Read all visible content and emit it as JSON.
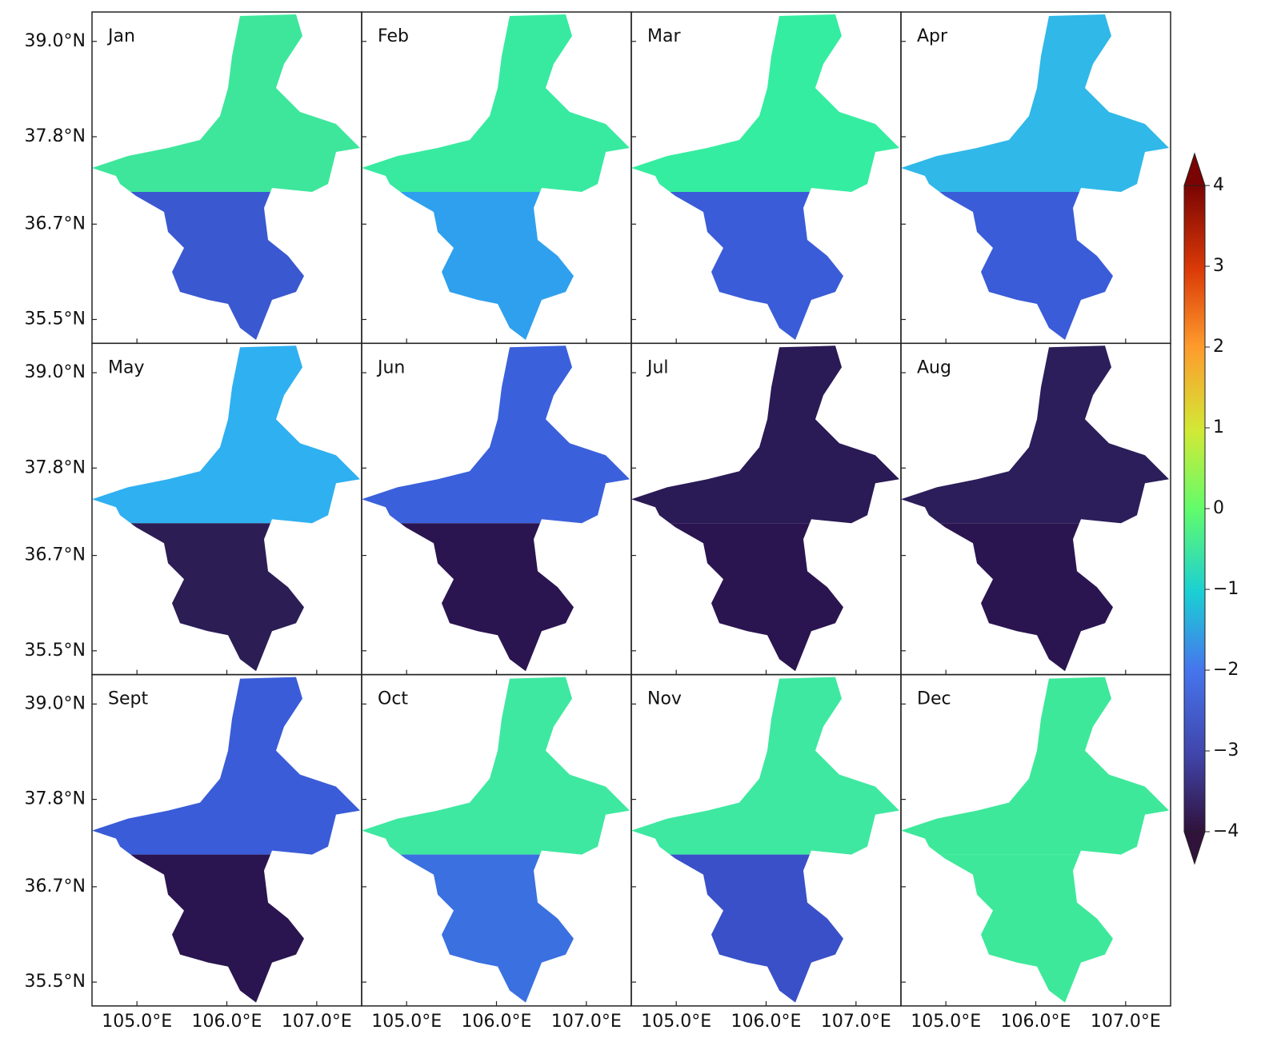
{
  "panels": [
    {
      "label": "Jan",
      "colors": [
        "#3ee69c",
        "#3a58d0"
      ]
    },
    {
      "label": "Feb",
      "colors": [
        "#38eaa0",
        "#2fa0ee"
      ]
    },
    {
      "label": "Mar",
      "colors": [
        "#35eda0",
        "#3a5cd8"
      ]
    },
    {
      "label": "Apr",
      "colors": [
        "#30b8e8",
        "#3a5cd8"
      ]
    },
    {
      "label": "May",
      "colors": [
        "#2fb0f0",
        "#2c1d55"
      ]
    },
    {
      "label": "Jun",
      "colors": [
        "#3a60dc",
        "#2a1550"
      ]
    },
    {
      "label": "Jul",
      "colors": [
        "#2a1a55",
        "#2a1550"
      ]
    },
    {
      "label": "Aug",
      "colors": [
        "#2c1e5a",
        "#2a1550"
      ]
    },
    {
      "label": "Sept",
      "colors": [
        "#3a5cd8",
        "#2a1550"
      ]
    },
    {
      "label": "Oct",
      "colors": [
        "#3ee8a0",
        "#3a70e0"
      ]
    },
    {
      "label": "Nov",
      "colors": [
        "#3ee8a0",
        "#3a50c8"
      ]
    },
    {
      "label": "Dec",
      "colors": [
        "#3ee89a",
        "#3ee89a"
      ]
    }
  ],
  "ylim": [
    35.2,
    39.37
  ],
  "xlim": [
    104.5,
    107.5
  ],
  "lat_ticks": [
    {
      "value": 39.0,
      "label": "39.0°N"
    },
    {
      "value": 37.8,
      "label": "37.8°N"
    },
    {
      "value": 36.7,
      "label": "36.7°N"
    },
    {
      "value": 35.5,
      "label": "35.5°N"
    }
  ],
  "lon_ticks": [
    {
      "value": 105.0,
      "label": "105.0°E"
    },
    {
      "value": 106.0,
      "label": "106.0°E"
    },
    {
      "value": 107.0,
      "label": "107.0°E"
    }
  ],
  "colorbar": {
    "lim": [
      -4,
      4
    ],
    "ticks": [
      4,
      3,
      2,
      1,
      0,
      {
        "value": -1,
        "label": "−1"
      },
      {
        "value": -2,
        "label": "−2"
      },
      {
        "value": -3,
        "label": "−3"
      },
      {
        "value": -4,
        "label": "−4"
      }
    ]
  }
}
